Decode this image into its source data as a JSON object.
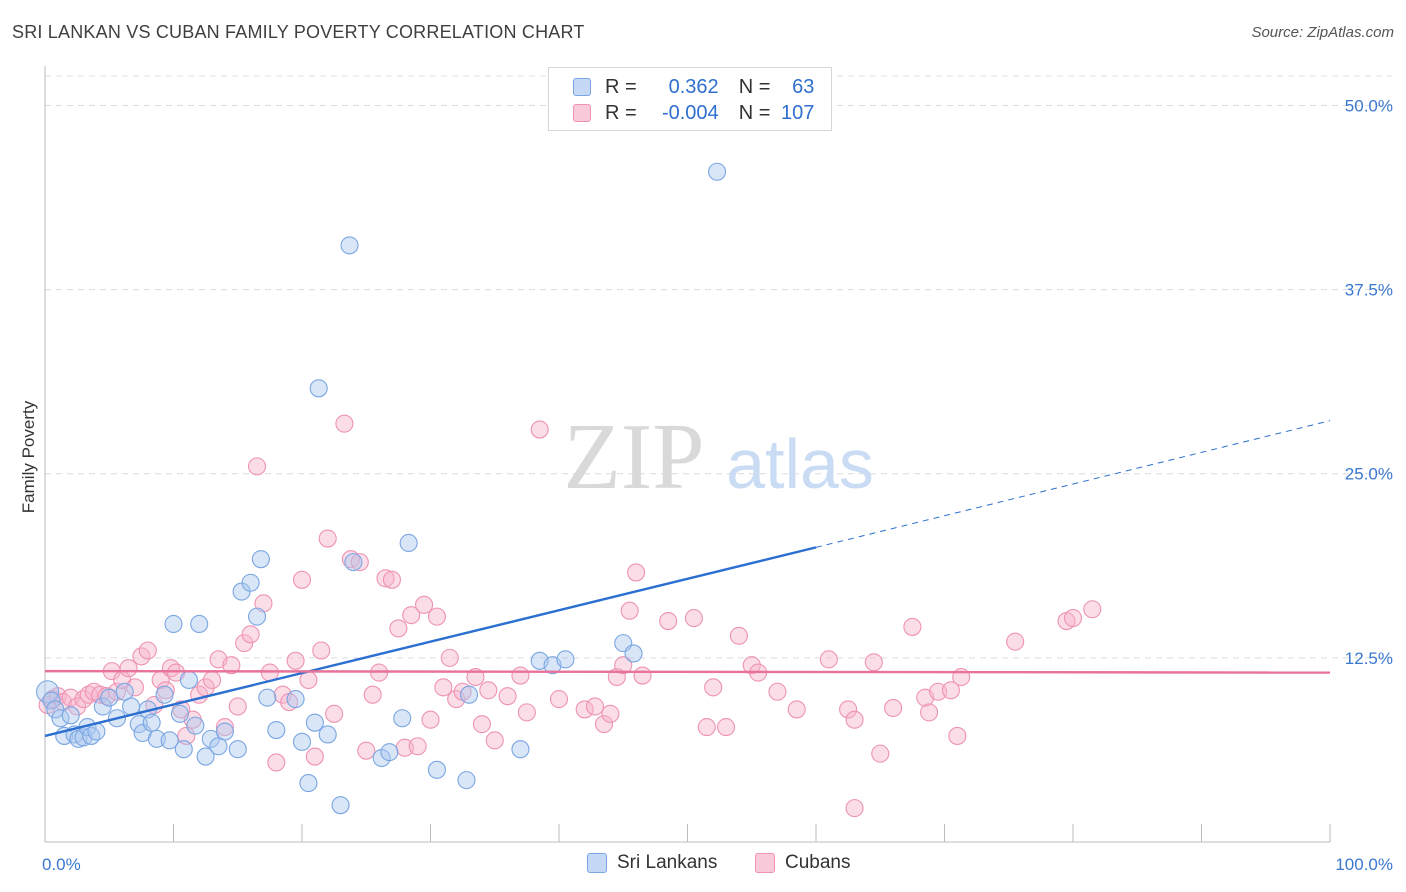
{
  "header": {
    "title": "SRI LANKAN VS CUBAN FAMILY POVERTY CORRELATION CHART",
    "source": "Source: ZipAtlas.com"
  },
  "legend": {
    "rows": [
      {
        "r_label": "R =",
        "r_value": "0.362",
        "n_label": "N =",
        "n_value": "63"
      },
      {
        "r_label": "R =",
        "r_value": "-0.004",
        "n_label": "N =",
        "n_value": "107"
      }
    ]
  },
  "bottom_legend": {
    "sri_lankans": "Sri Lankans",
    "cubans": "Cubans"
  },
  "watermark": {
    "zip": "ZIP",
    "atlas": "atlas"
  },
  "chart_data": {
    "type": "scatter",
    "title": "SRI LANKAN VS CUBAN FAMILY POVERTY CORRELATION CHART",
    "ylabel": "Family Poverty",
    "xlabel": "",
    "xlim": [
      0,
      100
    ],
    "ylim": [
      0,
      52
    ],
    "x_tick_labels": [
      "0.0%",
      "100.0%"
    ],
    "y_ticks": [
      12.5,
      25.0,
      37.5,
      50.0
    ],
    "y_tick_labels": [
      "12.5%",
      "25.0%",
      "37.5%",
      "50.0%"
    ],
    "grid": true,
    "legend_position": "top-center",
    "colors": {
      "sri_lankans": "#7aa6e2",
      "cubans": "#ee93b2",
      "sri_trend": "#2b6fd1",
      "cuban_trend": "#e8729a",
      "axis_label": "#3a78d0"
    },
    "series": [
      {
        "name": "Sri Lankans",
        "R": 0.362,
        "N": 63,
        "trend": {
          "x0": 0,
          "y0": 7.2,
          "x1": 60,
          "y1": 20.0,
          "dashed_to_x": 100,
          "dashed_to_y": 28.6
        },
        "points": [
          [
            0.2,
            10.2
          ],
          [
            0.5,
            9.6
          ],
          [
            0.8,
            9.0
          ],
          [
            1.2,
            8.4
          ],
          [
            1.5,
            7.2
          ],
          [
            2.0,
            8.6
          ],
          [
            2.3,
            7.3
          ],
          [
            2.6,
            7.0
          ],
          [
            3.0,
            7.1
          ],
          [
            3.3,
            7.8
          ],
          [
            3.6,
            7.2
          ],
          [
            4.0,
            7.5
          ],
          [
            4.5,
            9.2
          ],
          [
            5.0,
            9.8
          ],
          [
            5.6,
            8.4
          ],
          [
            6.2,
            10.2
          ],
          [
            6.7,
            9.2
          ],
          [
            7.3,
            8.0
          ],
          [
            7.6,
            7.4
          ],
          [
            8.0,
            9.0
          ],
          [
            8.3,
            8.1
          ],
          [
            8.7,
            7.0
          ],
          [
            9.3,
            10.0
          ],
          [
            9.7,
            6.9
          ],
          [
            10.0,
            14.8
          ],
          [
            10.5,
            8.7
          ],
          [
            10.8,
            6.3
          ],
          [
            11.2,
            11.0
          ],
          [
            11.7,
            7.9
          ],
          [
            12.0,
            14.8
          ],
          [
            12.5,
            5.8
          ],
          [
            12.9,
            7.0
          ],
          [
            13.5,
            6.5
          ],
          [
            14.0,
            7.5
          ],
          [
            15.0,
            6.3
          ],
          [
            15.3,
            17.0
          ],
          [
            16.0,
            17.6
          ],
          [
            16.5,
            15.3
          ],
          [
            16.8,
            19.2
          ],
          [
            17.3,
            9.8
          ],
          [
            18.0,
            7.6
          ],
          [
            19.5,
            9.7
          ],
          [
            20.0,
            6.8
          ],
          [
            20.5,
            4.0
          ],
          [
            21.0,
            8.1
          ],
          [
            21.3,
            30.8
          ],
          [
            22.0,
            7.3
          ],
          [
            23.0,
            2.5
          ],
          [
            23.7,
            40.5
          ],
          [
            24.0,
            19.0
          ],
          [
            26.2,
            5.7
          ],
          [
            26.8,
            6.1
          ],
          [
            27.8,
            8.4
          ],
          [
            28.3,
            20.3
          ],
          [
            30.5,
            4.9
          ],
          [
            32.8,
            4.2
          ],
          [
            33.0,
            10.0
          ],
          [
            37.0,
            6.3
          ],
          [
            38.5,
            12.3
          ],
          [
            39.5,
            12.0
          ],
          [
            40.5,
            12.4
          ],
          [
            45.0,
            13.5
          ],
          [
            45.8,
            12.8
          ],
          [
            52.3,
            45.5
          ]
        ]
      },
      {
        "name": "Cubans",
        "R": -0.004,
        "N": 107,
        "trend": {
          "x0": 0,
          "y0": 11.6,
          "x1": 100,
          "y1": 11.5
        },
        "points": [
          [
            0.2,
            9.3
          ],
          [
            0.6,
            9.7
          ],
          [
            1.0,
            9.9
          ],
          [
            1.4,
            9.5
          ],
          [
            2.0,
            9.8
          ],
          [
            2.5,
            9.2
          ],
          [
            3.0,
            9.7
          ],
          [
            3.4,
            10.0
          ],
          [
            3.8,
            10.2
          ],
          [
            4.3,
            10.0
          ],
          [
            4.8,
            9.9
          ],
          [
            5.2,
            11.6
          ],
          [
            5.6,
            10.2
          ],
          [
            6.0,
            11.0
          ],
          [
            6.5,
            11.8
          ],
          [
            7.0,
            10.5
          ],
          [
            7.5,
            12.6
          ],
          [
            8.0,
            13.0
          ],
          [
            8.5,
            9.3
          ],
          [
            9.0,
            11.0
          ],
          [
            9.4,
            10.3
          ],
          [
            9.8,
            11.8
          ],
          [
            10.2,
            11.5
          ],
          [
            10.6,
            9.0
          ],
          [
            11.0,
            7.2
          ],
          [
            11.5,
            8.3
          ],
          [
            12.0,
            10.0
          ],
          [
            12.5,
            10.5
          ],
          [
            13.0,
            11.0
          ],
          [
            13.5,
            12.4
          ],
          [
            14.0,
            7.8
          ],
          [
            14.5,
            12.0
          ],
          [
            15.0,
            9.2
          ],
          [
            15.5,
            13.5
          ],
          [
            16.0,
            14.1
          ],
          [
            16.5,
            25.5
          ],
          [
            17.0,
            16.2
          ],
          [
            17.5,
            11.5
          ],
          [
            18.0,
            5.4
          ],
          [
            18.5,
            10.0
          ],
          [
            19.0,
            9.5
          ],
          [
            19.5,
            12.3
          ],
          [
            20.0,
            17.8
          ],
          [
            20.5,
            11.0
          ],
          [
            21.0,
            5.8
          ],
          [
            21.5,
            13.0
          ],
          [
            22.0,
            20.6
          ],
          [
            22.5,
            8.7
          ],
          [
            23.3,
            28.4
          ],
          [
            23.8,
            19.2
          ],
          [
            24.5,
            19.0
          ],
          [
            25.0,
            6.2
          ],
          [
            25.5,
            10.0
          ],
          [
            26.0,
            11.5
          ],
          [
            26.5,
            17.9
          ],
          [
            27.0,
            17.8
          ],
          [
            27.5,
            14.5
          ],
          [
            28.0,
            6.4
          ],
          [
            28.5,
            15.4
          ],
          [
            29.0,
            6.5
          ],
          [
            29.5,
            16.1
          ],
          [
            30.0,
            8.3
          ],
          [
            30.5,
            15.3
          ],
          [
            31.0,
            10.5
          ],
          [
            31.5,
            12.5
          ],
          [
            32.0,
            9.7
          ],
          [
            32.5,
            10.2
          ],
          [
            33.5,
            11.2
          ],
          [
            34.0,
            8.0
          ],
          [
            34.5,
            10.3
          ],
          [
            35.0,
            6.9
          ],
          [
            36.0,
            9.9
          ],
          [
            37.0,
            11.3
          ],
          [
            37.5,
            8.8
          ],
          [
            38.5,
            28.0
          ],
          [
            40.0,
            9.7
          ],
          [
            42.0,
            9.0
          ],
          [
            42.8,
            9.2
          ],
          [
            43.5,
            8.0
          ],
          [
            44.0,
            8.7
          ],
          [
            44.5,
            11.2
          ],
          [
            45.0,
            12.0
          ],
          [
            45.5,
            15.7
          ],
          [
            46.0,
            18.3
          ],
          [
            46.5,
            11.3
          ],
          [
            48.5,
            15.0
          ],
          [
            50.5,
            15.2
          ],
          [
            51.5,
            7.8
          ],
          [
            52.0,
            10.5
          ],
          [
            53.0,
            7.8
          ],
          [
            54.0,
            14.0
          ],
          [
            55.0,
            12.0
          ],
          [
            55.5,
            11.5
          ],
          [
            57.0,
            10.2
          ],
          [
            58.5,
            9.0
          ],
          [
            61.0,
            12.4
          ],
          [
            62.5,
            9.0
          ],
          [
            63.0,
            8.3
          ],
          [
            63.0,
            2.3
          ],
          [
            64.5,
            12.2
          ],
          [
            65.0,
            6.0
          ],
          [
            66.0,
            9.1
          ],
          [
            67.5,
            14.6
          ],
          [
            68.5,
            9.8
          ],
          [
            68.8,
            8.8
          ],
          [
            69.5,
            10.2
          ],
          [
            70.5,
            10.3
          ],
          [
            71.3,
            11.2
          ],
          [
            71.0,
            7.2
          ],
          [
            75.5,
            13.6
          ],
          [
            79.5,
            15.0
          ],
          [
            80.0,
            15.2
          ],
          [
            81.5,
            15.8
          ]
        ]
      }
    ]
  }
}
